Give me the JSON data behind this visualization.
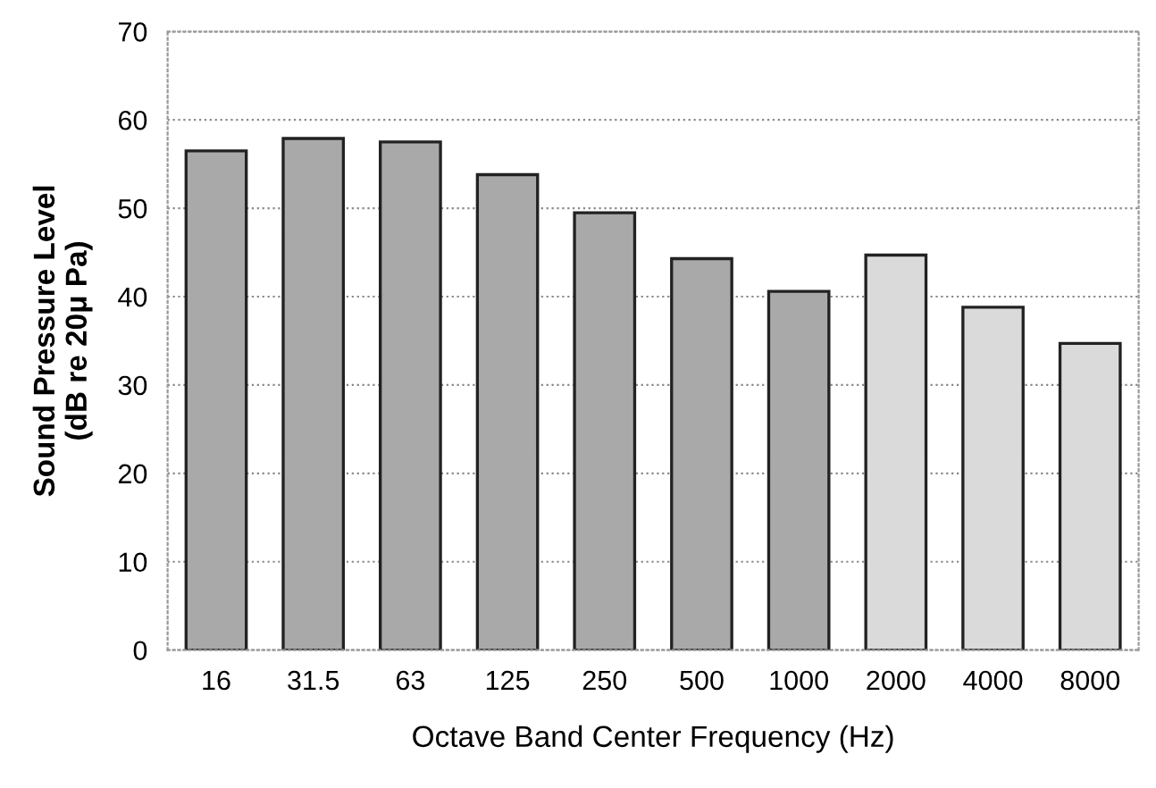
{
  "chart_data": {
    "type": "bar",
    "xlabel": "Octave Band Center Frequency (Hz)",
    "ylabel": "Sound Pressure Level\n(dB re 20μ Pa)",
    "categories": [
      "16",
      "31.5",
      "63",
      "125",
      "250",
      "500",
      "1000",
      "2000",
      "4000",
      "8000"
    ],
    "values": [
      56.5,
      57.9,
      57.5,
      53.8,
      49.5,
      44.3,
      40.6,
      44.7,
      38.8,
      34.7
    ],
    "colors": [
      "#a9a9a9",
      "#a9a9a9",
      "#a9a9a9",
      "#a9a9a9",
      "#a9a9a9",
      "#a9a9a9",
      "#a9a9a9",
      "#dadada",
      "#dadada",
      "#dadada"
    ],
    "ylim": [
      0,
      70
    ],
    "yticks": [
      0,
      10,
      20,
      30,
      40,
      50,
      60,
      70
    ],
    "grid": "y"
  }
}
